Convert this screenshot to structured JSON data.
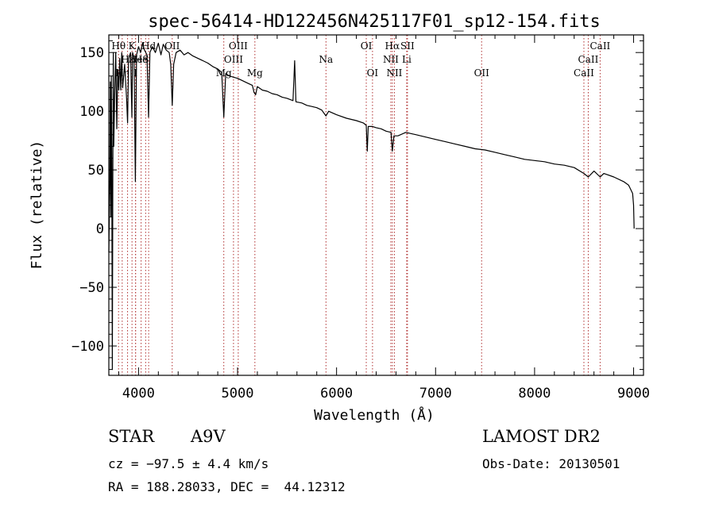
{
  "title": "spec-56414-HD122456N425117F01_sp12-154.fits",
  "info": {
    "object_class": "STAR",
    "subclass": "A9V",
    "survey": "LAMOST DR2",
    "redshift": "cz = −97.5 ± 4.4 km/s",
    "obs_date": "Obs-Date: 20130501",
    "coords": "RA = 188.28033, DEC =  44.12312"
  },
  "chart_data": {
    "type": "line",
    "title": "spec-56414-HD122456N425117F01_sp12-154.fits",
    "xlabel": "Wavelength (Å)",
    "ylabel": "Flux (relative)",
    "xlim": [
      3700,
      9100
    ],
    "ylim": [
      -125,
      165
    ],
    "xticks": [
      4000,
      5000,
      6000,
      7000,
      8000,
      9000
    ],
    "yticks": [
      -100,
      -50,
      0,
      50,
      100,
      150
    ],
    "ytick_labels": [
      "−100",
      "−50",
      "0",
      "50",
      "100",
      "150"
    ],
    "grid": false,
    "series": [
      {
        "color": "#000000",
        "points": [
          [
            3700,
            -20
          ],
          [
            3710,
            40
          ],
          [
            3715,
            125
          ],
          [
            3720,
            10
          ],
          [
            3725,
            130
          ],
          [
            3730,
            60
          ],
          [
            3735,
            -120
          ],
          [
            3740,
            40
          ],
          [
            3745,
            150
          ],
          [
            3750,
            70
          ],
          [
            3760,
            118
          ],
          [
            3770,
            150
          ],
          [
            3780,
            85
          ],
          [
            3790,
            135
          ],
          [
            3800,
            118
          ],
          [
            3810,
            145
          ],
          [
            3820,
            118
          ],
          [
            3830,
            150
          ],
          [
            3840,
            120
          ],
          [
            3860,
            140
          ],
          [
            3880,
            110
          ],
          [
            3889,
            90
          ],
          [
            3900,
            145
          ],
          [
            3920,
            150
          ],
          [
            3933,
            95
          ],
          [
            3940,
            150
          ],
          [
            3955,
            145
          ],
          [
            3968,
            40
          ],
          [
            3980,
            148
          ],
          [
            4000,
            155
          ],
          [
            4020,
            150
          ],
          [
            4040,
            158
          ],
          [
            4060,
            152
          ],
          [
            4085,
            148
          ],
          [
            4101,
            95
          ],
          [
            4115,
            150
          ],
          [
            4140,
            155
          ],
          [
            4170,
            150
          ],
          [
            4200,
            158
          ],
          [
            4226,
            148
          ],
          [
            4250,
            157
          ],
          [
            4280,
            152
          ],
          [
            4310,
            150
          ],
          [
            4325,
            140
          ],
          [
            4340,
            105
          ],
          [
            4355,
            140
          ],
          [
            4380,
            150
          ],
          [
            4420,
            152
          ],
          [
            4460,
            148
          ],
          [
            4500,
            150
          ],
          [
            4550,
            147
          ],
          [
            4600,
            145
          ],
          [
            4650,
            143
          ],
          [
            4700,
            141
          ],
          [
            4750,
            138
          ],
          [
            4800,
            136
          ],
          [
            4840,
            133
          ],
          [
            4861,
            95
          ],
          [
            4880,
            132
          ],
          [
            4920,
            130
          ],
          [
            4960,
            129
          ],
          [
            5000,
            128
          ],
          [
            5050,
            126
          ],
          [
            5100,
            124
          ],
          [
            5150,
            122
          ],
          [
            5167,
            116
          ],
          [
            5183,
            114
          ],
          [
            5200,
            121
          ],
          [
            5250,
            118
          ],
          [
            5300,
            117
          ],
          [
            5350,
            115
          ],
          [
            5400,
            114
          ],
          [
            5450,
            112
          ],
          [
            5500,
            111
          ],
          [
            5560,
            109
          ],
          [
            5577,
            143
          ],
          [
            5590,
            108
          ],
          [
            5650,
            107
          ],
          [
            5700,
            105
          ],
          [
            5750,
            104
          ],
          [
            5800,
            103
          ],
          [
            5850,
            101
          ],
          [
            5893,
            96
          ],
          [
            5920,
            100
          ],
          [
            6000,
            97
          ],
          [
            6100,
            94
          ],
          [
            6200,
            92
          ],
          [
            6270,
            90
          ],
          [
            6300,
            88
          ],
          [
            6310,
            66
          ],
          [
            6320,
            87
          ],
          [
            6363,
            87
          ],
          [
            6400,
            86
          ],
          [
            6450,
            85
          ],
          [
            6500,
            83
          ],
          [
            6550,
            82
          ],
          [
            6563,
            66
          ],
          [
            6580,
            79
          ],
          [
            6620,
            79
          ],
          [
            6700,
            82
          ],
          [
            6750,
            81
          ],
          [
            6800,
            80
          ],
          [
            6900,
            78
          ],
          [
            7000,
            76
          ],
          [
            7100,
            74
          ],
          [
            7200,
            72
          ],
          [
            7300,
            70
          ],
          [
            7400,
            68
          ],
          [
            7500,
            67
          ],
          [
            7600,
            65
          ],
          [
            7700,
            63
          ],
          [
            7800,
            61
          ],
          [
            7900,
            59
          ],
          [
            8000,
            58
          ],
          [
            8100,
            57
          ],
          [
            8200,
            55
          ],
          [
            8300,
            54
          ],
          [
            8400,
            52
          ],
          [
            8498,
            47
          ],
          [
            8542,
            44
          ],
          [
            8600,
            49
          ],
          [
            8662,
            44
          ],
          [
            8700,
            47
          ],
          [
            8800,
            44
          ],
          [
            8900,
            40
          ],
          [
            8950,
            37
          ],
          [
            8990,
            30
          ],
          [
            9000,
            20
          ],
          [
            9005,
            0
          ]
        ]
      }
    ],
    "line_markers": [
      {
        "label": "Hθ",
        "wavelength": 3798,
        "row": 1
      },
      {
        "label": "Hε",
        "wavelength": 3889,
        "row": 2
      },
      {
        "label": "K",
        "wavelength": 3934,
        "row": 1
      },
      {
        "label": "Hη",
        "wavelength": 3835,
        "row": 3
      },
      {
        "label": "He",
        "wavelength": 3970,
        "row": 2
      },
      {
        "label": "Hd",
        "wavelength": 4102,
        "row": 1
      },
      {
        "label": "He",
        "wavelength": 4026,
        "row": 2
      },
      {
        "label": "I",
        "wavelength": 3970,
        "row": 3
      },
      {
        "label": "S",
        "wavelength": 4072,
        "row": 2
      },
      {
        "label": "OII",
        "wavelength": 4340,
        "row": 1
      },
      {
        "label": "OIII",
        "wavelength": 5007,
        "row": 1
      },
      {
        "label": "OIII",
        "wavelength": 4959,
        "row": 2
      },
      {
        "label": "Mg",
        "wavelength": 4861,
        "row": 3
      },
      {
        "label": "Mg",
        "wavelength": 5175,
        "row": 3
      },
      {
        "label": "Na",
        "wavelength": 5893,
        "row": 2
      },
      {
        "label": "OI",
        "wavelength": 6300,
        "row": 1
      },
      {
        "label": "OI",
        "wavelength": 6363,
        "row": 3
      },
      {
        "label": "Hα",
        "wavelength": 6563,
        "row": 1
      },
      {
        "label": "SII",
        "wavelength": 6716,
        "row": 1
      },
      {
        "label": "NII",
        "wavelength": 6548,
        "row": 2
      },
      {
        "label": "Li",
        "wavelength": 6708,
        "row": 2
      },
      {
        "label": "NII",
        "wavelength": 6584,
        "row": 3
      },
      {
        "label": "OII",
        "wavelength": 7465,
        "row": 3
      },
      {
        "label": "CaII",
        "wavelength": 8662,
        "row": 1
      },
      {
        "label": "CaII",
        "wavelength": 8542,
        "row": 2
      },
      {
        "label": "CaII",
        "wavelength": 8498,
        "row": 3
      }
    ],
    "colors": {
      "spectrum": "#000000",
      "line_markers": "#b03030",
      "frame": "#000000"
    }
  }
}
